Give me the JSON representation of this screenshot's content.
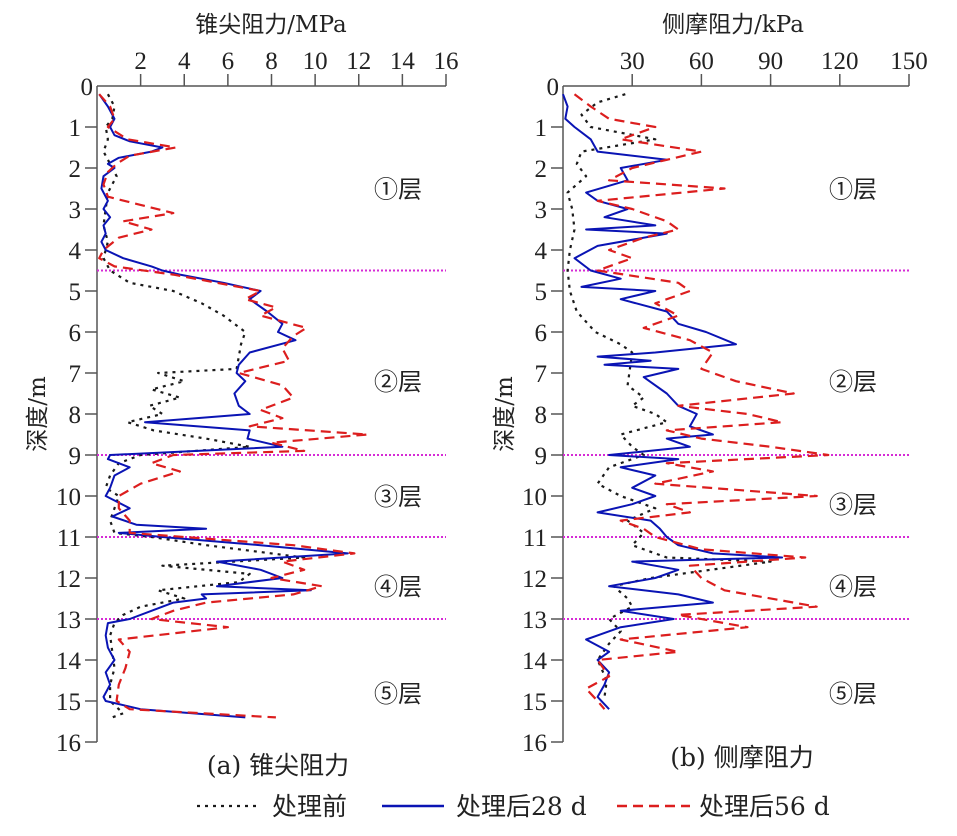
{
  "legend": [
    {
      "key": "before",
      "label": "处理前",
      "color": "#1a1a1a",
      "style": "dotted"
    },
    {
      "key": "d28",
      "label": "处理后28 d",
      "color": "#0a14b4",
      "style": "solid"
    },
    {
      "key": "d56",
      "label": "处理后56 d",
      "color": "#dc1e1e",
      "style": "dashed"
    }
  ],
  "layer_line_color": "#d62ad6",
  "chart_data": [
    {
      "type": "line",
      "orientation": "depth-profile",
      "caption": "(a) 锥尖阻力",
      "xlabel": "锥尖阻力/MPa",
      "ylabel": "深度/m",
      "xlim": [
        0,
        16
      ],
      "ylim": [
        0,
        16
      ],
      "xticks": [
        "2",
        "4",
        "6",
        "8",
        "10",
        "12",
        "14",
        "16"
      ],
      "xtick_values": [
        2,
        4,
        6,
        8,
        10,
        12,
        14,
        16
      ],
      "yticks": [
        "0",
        "1",
        "2",
        "3",
        "4",
        "5",
        "6",
        "7",
        "8",
        "9",
        "10",
        "11",
        "12",
        "13",
        "14",
        "15",
        "16"
      ],
      "ytick_values": [
        0,
        1,
        2,
        3,
        4,
        5,
        6,
        7,
        8,
        9,
        10,
        11,
        12,
        13,
        14,
        15,
        16
      ],
      "grid": false,
      "layer_boundaries": [
        4.5,
        9.0,
        11.0,
        13.0
      ],
      "layer_labels": [
        {
          "text": "①层",
          "depth": 2.5
        },
        {
          "text": "②层",
          "depth": 7.2
        },
        {
          "text": "③层",
          "depth": 10.0
        },
        {
          "text": "④层",
          "depth": 12.2
        },
        {
          "text": "⑤层",
          "depth": 14.8
        }
      ],
      "series": [
        {
          "name": "处理前",
          "key": "before",
          "depth": [
            0.2,
            0.5,
            0.8,
            1.0,
            1.3,
            1.6,
            1.9,
            2.2,
            2.6,
            3.0,
            3.4,
            3.8,
            4.2,
            4.5,
            4.8,
            5.0,
            5.3,
            5.6,
            6.0,
            6.3,
            6.6,
            6.9,
            7.0,
            7.2,
            7.4,
            7.6,
            7.8,
            8.0,
            8.2,
            8.4,
            8.6,
            8.8,
            9.0,
            9.2,
            9.5,
            9.8,
            10.0,
            10.3,
            10.6,
            10.9,
            11.0,
            11.2,
            11.5,
            11.7,
            11.9,
            12.1,
            12.3,
            12.5,
            12.7,
            12.9,
            13.1,
            13.4,
            13.8,
            14.2,
            14.6,
            15.0,
            15.3,
            15.4
          ],
          "values": [
            0.5,
            0.8,
            0.7,
            0.4,
            0.5,
            0.3,
            0.6,
            0.9,
            0.5,
            0.4,
            0.3,
            0.5,
            0.3,
            0.6,
            1.5,
            3.5,
            4.8,
            5.8,
            6.8,
            6.6,
            6.5,
            6.4,
            2.8,
            4.0,
            2.5,
            3.8,
            2.4,
            3.0,
            1.4,
            2.6,
            5.0,
            7.0,
            2.0,
            1.0,
            0.6,
            0.4,
            1.0,
            0.8,
            0.6,
            0.8,
            2.5,
            5.0,
            9.5,
            3.0,
            7.0,
            6.5,
            2.8,
            4.0,
            2.0,
            1.2,
            0.8,
            0.6,
            0.7,
            0.8,
            0.6,
            0.6,
            1.2,
            0.7
          ]
        },
        {
          "name": "处理后28 d",
          "key": "d28",
          "depth": [
            0.2,
            0.5,
            0.8,
            1.0,
            1.2,
            1.35,
            1.5,
            1.6,
            1.75,
            1.9,
            2.0,
            2.2,
            2.5,
            2.8,
            3.0,
            3.2,
            3.4,
            3.6,
            3.8,
            4.0,
            4.2,
            4.4,
            4.5,
            4.6,
            4.8,
            5.0,
            5.2,
            5.5,
            5.8,
            6.0,
            6.2,
            6.5,
            6.8,
            7.0,
            7.2,
            7.5,
            7.8,
            8.0,
            8.2,
            8.4,
            8.6,
            8.8,
            9.0,
            9.1,
            9.3,
            9.5,
            9.8,
            10.0,
            10.3,
            10.5,
            10.7,
            10.8,
            10.9,
            11.0,
            11.2,
            11.4,
            11.6,
            11.8,
            12.0,
            12.2,
            12.3,
            12.4,
            12.5,
            12.6,
            12.8,
            13.0,
            13.1,
            13.4,
            13.7,
            14.0,
            14.3,
            14.6,
            14.9,
            15.0,
            15.2,
            15.4
          ],
          "values": [
            0.1,
            0.5,
            0.8,
            0.6,
            0.8,
            1.5,
            3.0,
            2.5,
            1.0,
            0.5,
            0.8,
            0.3,
            0.2,
            0.5,
            0.3,
            0.6,
            0.3,
            0.4,
            0.2,
            0.4,
            1.2,
            2.5,
            3.0,
            3.8,
            5.8,
            7.5,
            7.0,
            7.8,
            8.5,
            8.3,
            9.1,
            7.0,
            6.5,
            6.4,
            6.8,
            6.3,
            6.5,
            7.0,
            2.2,
            7.0,
            6.9,
            8.5,
            0.6,
            0.5,
            1.5,
            0.8,
            0.6,
            0.4,
            1.5,
            0.7,
            1.8,
            5.0,
            1.0,
            3.0,
            7.5,
            11.5,
            5.5,
            7.5,
            8.5,
            5.5,
            9.8,
            4.8,
            5.0,
            3.5,
            2.5,
            1.5,
            0.5,
            0.4,
            0.5,
            0.8,
            0.4,
            0.6,
            0.3,
            0.4,
            2.0,
            6.8
          ]
        },
        {
          "name": "处理后56 d",
          "key": "d56",
          "depth": [
            0.2,
            0.5,
            0.8,
            1.0,
            1.3,
            1.5,
            1.7,
            1.9,
            2.1,
            2.4,
            2.7,
            2.9,
            3.1,
            3.3,
            3.5,
            3.7,
            4.0,
            4.2,
            4.4,
            4.6,
            4.8,
            5.0,
            5.2,
            5.4,
            5.6,
            5.9,
            6.1,
            6.4,
            6.7,
            7.0,
            7.3,
            7.6,
            7.9,
            8.1,
            8.3,
            8.5,
            8.7,
            8.9,
            9.0,
            9.2,
            9.4,
            9.7,
            10.0,
            10.3,
            10.6,
            10.9,
            11.0,
            11.2,
            11.4,
            11.6,
            11.8,
            12.0,
            12.2,
            12.4,
            12.6,
            12.8,
            13.0,
            13.2,
            13.5,
            13.8,
            14.2,
            14.6,
            15.0,
            15.2,
            15.4
          ],
          "values": [
            0.1,
            0.6,
            0.8,
            0.5,
            1.4,
            3.6,
            1.5,
            0.9,
            0.5,
            0.3,
            0.5,
            2.0,
            3.5,
            1.2,
            2.5,
            1.0,
            0.3,
            0.1,
            0.8,
            3.5,
            5.5,
            7.5,
            6.8,
            8.2,
            7.5,
            9.6,
            9.0,
            8.5,
            8.8,
            6.5,
            8.5,
            9.0,
            7.5,
            8.5,
            7.0,
            12.4,
            8.0,
            9.5,
            3.5,
            2.5,
            3.8,
            2.0,
            1.0,
            1.0,
            1.5,
            1.5,
            4.0,
            9.0,
            11.8,
            8.5,
            9.5,
            8.0,
            10.3,
            9.0,
            5.0,
            3.5,
            2.5,
            6.0,
            1.0,
            1.5,
            1.3,
            1.0,
            0.9,
            1.5,
            8.2
          ]
        }
      ]
    },
    {
      "type": "line",
      "orientation": "depth-profile",
      "caption": "(b) 侧摩阻力",
      "xlabel": "侧摩阻力/kPa",
      "ylabel": "深度/m",
      "xlim": [
        0,
        150
      ],
      "ylim": [
        0,
        16
      ],
      "xticks": [
        "30",
        "60",
        "90",
        "120",
        "150"
      ],
      "xtick_values": [
        30,
        60,
        90,
        120,
        150
      ],
      "yticks": [
        "0",
        "1",
        "2",
        "3",
        "4",
        "5",
        "6",
        "7",
        "8",
        "9",
        "10",
        "11",
        "12",
        "13",
        "14",
        "15",
        "16"
      ],
      "ytick_values": [
        0,
        1,
        2,
        3,
        4,
        5,
        6,
        7,
        8,
        9,
        10,
        11,
        12,
        13,
        14,
        15,
        16
      ],
      "grid": false,
      "layer_boundaries": [
        4.5,
        9.0,
        11.0,
        13.0
      ],
      "layer_labels": [
        {
          "text": "①层",
          "depth": 2.5
        },
        {
          "text": "②层",
          "depth": 7.2
        },
        {
          "text": "③层",
          "depth": 10.2
        },
        {
          "text": "④层",
          "depth": 12.2
        },
        {
          "text": "⑤层",
          "depth": 14.8
        }
      ],
      "series": [
        {
          "name": "处理前",
          "key": "before",
          "depth": [
            0.2,
            0.4,
            0.7,
            1.0,
            1.3,
            1.6,
            1.9,
            2.2,
            2.6,
            3.0,
            3.5,
            4.0,
            4.5,
            5.0,
            5.5,
            6.0,
            6.3,
            6.5,
            7.3,
            7.6,
            7.8,
            8.0,
            8.2,
            8.5,
            8.8,
            9.0,
            9.3,
            9.7,
            10.0,
            10.3,
            10.6,
            10.9,
            11.2,
            11.5,
            11.6,
            12.0,
            12.2,
            12.5,
            12.7,
            13.0,
            13.3,
            13.6,
            14.0,
            14.5,
            14.9
          ],
          "values": [
            27,
            15,
            8,
            12,
            40,
            8,
            6,
            10,
            2,
            4,
            5,
            3,
            2,
            3,
            6,
            14,
            25,
            30,
            28,
            35,
            30,
            40,
            45,
            25,
            30,
            35,
            20,
            15,
            25,
            40,
            28,
            35,
            30,
            45,
            90,
            38,
            22,
            28,
            30,
            20,
            25,
            20,
            15,
            19,
            18
          ]
        },
        {
          "name": "处理后28 d",
          "key": "d28",
          "depth": [
            0.2,
            0.5,
            0.8,
            1.0,
            1.3,
            1.6,
            1.8,
            2.0,
            2.3,
            2.6,
            2.8,
            3.0,
            3.2,
            3.4,
            3.5,
            3.6,
            3.9,
            4.2,
            4.5,
            4.7,
            4.9,
            5.0,
            5.2,
            5.5,
            5.8,
            6.0,
            6.3,
            6.5,
            6.6,
            6.7,
            6.8,
            6.9,
            7.1,
            7.5,
            7.8,
            8.0,
            8.3,
            8.5,
            8.6,
            8.8,
            9.0,
            9.1,
            9.3,
            9.5,
            9.8,
            10.0,
            10.2,
            10.4,
            10.6,
            10.8,
            11.0,
            11.2,
            11.4,
            11.5,
            11.6,
            11.8,
            12.0,
            12.2,
            12.4,
            12.6,
            12.8,
            13.0,
            13.2,
            13.5,
            13.8,
            14.0,
            14.3,
            14.6,
            14.9,
            15.2
          ],
          "values": [
            0,
            2,
            1,
            5,
            12,
            15,
            45,
            25,
            28,
            10,
            15,
            28,
            18,
            40,
            10,
            45,
            15,
            5,
            12,
            25,
            8,
            40,
            25,
            45,
            50,
            62,
            75,
            40,
            15,
            38,
            18,
            50,
            35,
            45,
            50,
            58,
            55,
            65,
            45,
            55,
            20,
            50,
            25,
            40,
            30,
            40,
            30,
            15,
            38,
            42,
            45,
            50,
            65,
            95,
            30,
            50,
            40,
            20,
            50,
            65,
            25,
            48,
            25,
            10,
            20,
            15,
            20,
            18,
            15,
            20
          ]
        },
        {
          "name": "处理后56 d",
          "key": "d56",
          "depth": [
            0.2,
            0.5,
            0.8,
            1.0,
            1.3,
            1.6,
            1.8,
            2.0,
            2.3,
            2.5,
            2.8,
            3.0,
            3.3,
            3.5,
            3.7,
            4.0,
            4.2,
            4.5,
            4.8,
            5.0,
            5.3,
            5.6,
            5.9,
            6.2,
            6.5,
            6.9,
            7.2,
            7.5,
            7.8,
            8.0,
            8.2,
            8.4,
            8.6,
            8.8,
            9.0,
            9.2,
            9.4,
            9.7,
            10.0,
            10.2,
            10.4,
            10.6,
            10.8,
            11.0,
            11.3,
            11.5,
            11.7,
            12.0,
            12.3,
            12.7,
            12.9,
            13.2,
            13.5,
            13.8,
            14.0,
            14.4,
            14.7,
            15.0,
            15.2
          ],
          "values": [
            5,
            12,
            20,
            40,
            25,
            60,
            45,
            30,
            20,
            70,
            15,
            30,
            45,
            50,
            35,
            20,
            30,
            15,
            50,
            55,
            40,
            50,
            35,
            55,
            65,
            60,
            75,
            100,
            50,
            80,
            95,
            45,
            60,
            90,
            115,
            45,
            65,
            40,
            110,
            45,
            55,
            25,
            35,
            40,
            60,
            105,
            55,
            60,
            70,
            110,
            50,
            80,
            25,
            50,
            15,
            20,
            10,
            15,
            18
          ]
        }
      ]
    }
  ]
}
